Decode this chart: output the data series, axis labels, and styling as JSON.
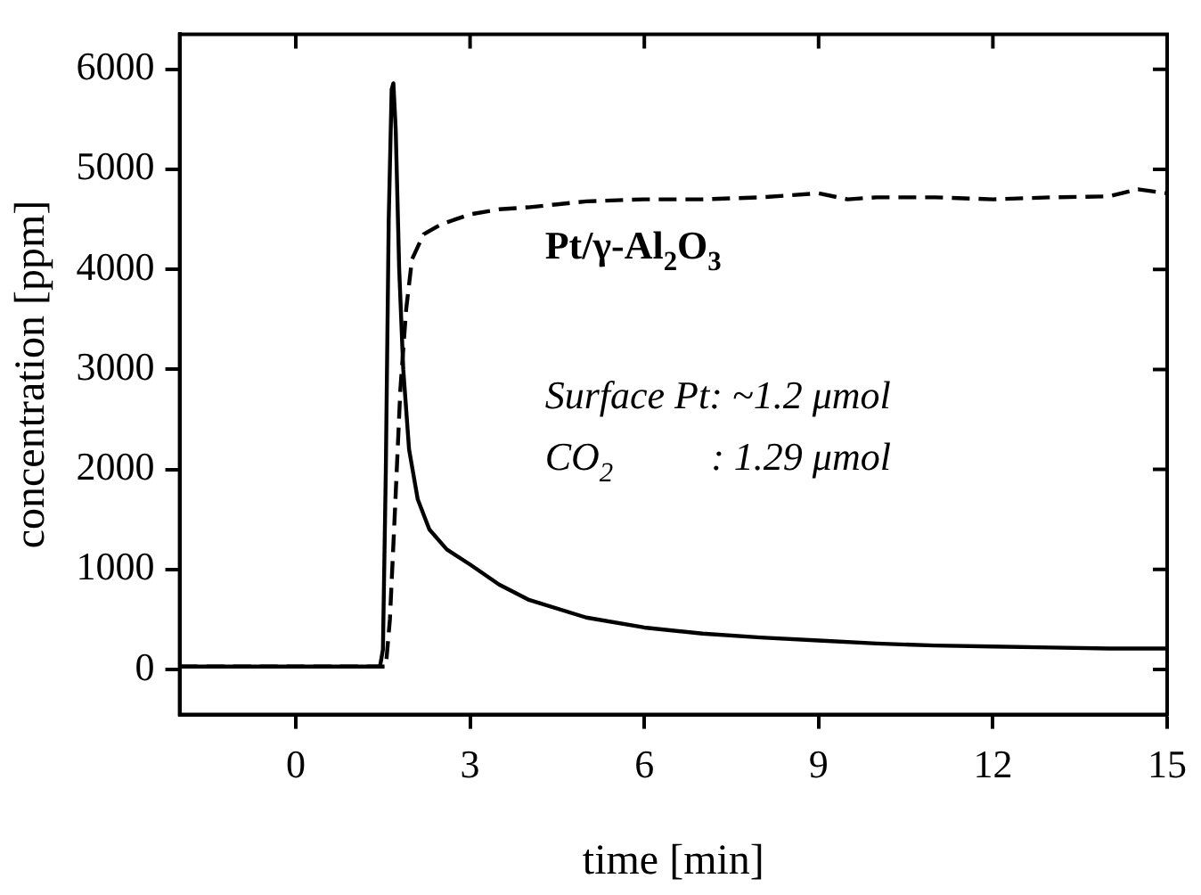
{
  "chart_data": {
    "type": "line",
    "xlabel": "time [min]",
    "ylabel": "concentration [ppm]",
    "annotations": [
      "Pt/γ-Al$_{2}$O$_{3}$",
      "Surface Pt: ~1.2 μmol",
      "CO$_{2}$          : 1.29 μmol"
    ],
    "series": [
      {
        "color": "#000000",
        "line_style": "solid",
        "x": [
          -2,
          1.45,
          1.5,
          1.55,
          1.6,
          1.65,
          1.68,
          1.72,
          1.78,
          1.85,
          1.95,
          2.1,
          2.3,
          2.6,
          3,
          3.5,
          4,
          5,
          6,
          7,
          8,
          9,
          10,
          11,
          12,
          13,
          14,
          15
        ],
        "values": [
          30,
          30,
          200,
          2000,
          4500,
          5800,
          5860,
          5400,
          4000,
          3000,
          2200,
          1700,
          1400,
          1200,
          1050,
          850,
          700,
          520,
          420,
          360,
          320,
          290,
          260,
          240,
          230,
          220,
          210,
          210
        ]
      },
      {
        "color": "#000000",
        "line_style": "dashed",
        "x": [
          -2,
          1.55,
          1.62,
          1.7,
          1.8,
          1.9,
          2.0,
          2.2,
          2.5,
          3,
          3.5,
          4,
          4.5,
          5,
          6,
          7,
          8,
          9,
          9.5,
          10,
          11,
          12,
          13,
          14,
          14.5,
          15
        ],
        "values": [
          30,
          30,
          500,
          1500,
          2800,
          3600,
          4100,
          4350,
          4450,
          4550,
          4600,
          4620,
          4650,
          4680,
          4700,
          4700,
          4720,
          4760,
          4700,
          4720,
          4720,
          4700,
          4720,
          4730,
          4800,
          4760
        ]
      }
    ],
    "xlim": [
      -2,
      15
    ],
    "xticks": [
      0,
      3,
      6,
      9,
      12,
      15
    ],
    "ylim": [
      -450,
      6350
    ],
    "yticks": [
      0,
      1000,
      2000,
      3000,
      4000,
      5000,
      6000
    ],
    "grid": false,
    "legend": false,
    "marker": "none"
  }
}
